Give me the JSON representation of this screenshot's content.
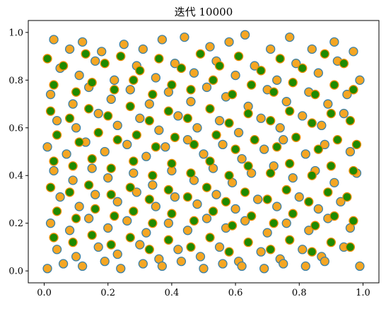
{
  "chart_data": {
    "type": "scatter",
    "title": "迭代 10000",
    "xlabel": "",
    "ylabel": "",
    "xlim": [
      -0.05,
      1.05
    ],
    "ylim": [
      -0.05,
      1.05
    ],
    "xticks": [
      0.0,
      0.2,
      0.4,
      0.6,
      0.8,
      1.0
    ],
    "xtick_labels": [
      "0.0",
      "0.2",
      "0.4",
      "0.6",
      "0.8",
      "1.0"
    ],
    "yticks": [
      0.0,
      0.2,
      0.4,
      0.6,
      0.8,
      1.0
    ],
    "ytick_labels": [
      "0.0",
      "0.2",
      "0.4",
      "0.6",
      "0.8",
      "1.0"
    ],
    "grid": false,
    "legend": "none",
    "series": [
      {
        "marker_fill": "#f5a623",
        "marker_edge": "#3a7fa5",
        "points": [
          [
            0.03,
            0.97
          ],
          [
            0.08,
            0.93
          ],
          [
            0.12,
            0.96
          ],
          [
            0.18,
            0.92
          ],
          [
            0.25,
            0.95
          ],
          [
            0.31,
            0.93
          ],
          [
            0.37,
            0.97
          ],
          [
            0.44,
            0.98
          ],
          [
            0.52,
            0.94
          ],
          [
            0.58,
            0.96
          ],
          [
            0.63,
            0.99
          ],
          [
            0.71,
            0.93
          ],
          [
            0.77,
            0.98
          ],
          [
            0.84,
            0.93
          ],
          [
            0.91,
            0.96
          ],
          [
            0.97,
            0.92
          ],
          [
            0.05,
            0.85
          ],
          [
            0.11,
            0.82
          ],
          [
            0.16,
            0.88
          ],
          [
            0.22,
            0.8
          ],
          [
            0.29,
            0.86
          ],
          [
            0.35,
            0.81
          ],
          [
            0.41,
            0.87
          ],
          [
            0.47,
            0.83
          ],
          [
            0.54,
            0.88
          ],
          [
            0.6,
            0.82
          ],
          [
            0.66,
            0.86
          ],
          [
            0.73,
            0.8
          ],
          [
            0.79,
            0.87
          ],
          [
            0.86,
            0.83
          ],
          [
            0.92,
            0.88
          ],
          [
            0.99,
            0.8
          ],
          [
            0.02,
            0.74
          ],
          [
            0.09,
            0.7
          ],
          [
            0.14,
            0.77
          ],
          [
            0.21,
            0.72
          ],
          [
            0.27,
            0.76
          ],
          [
            0.33,
            0.7
          ],
          [
            0.39,
            0.75
          ],
          [
            0.46,
            0.71
          ],
          [
            0.51,
            0.77
          ],
          [
            0.57,
            0.73
          ],
          [
            0.64,
            0.69
          ],
          [
            0.7,
            0.76
          ],
          [
            0.76,
            0.71
          ],
          [
            0.83,
            0.75
          ],
          [
            0.89,
            0.7
          ],
          [
            0.95,
            0.74
          ],
          [
            0.04,
            0.63
          ],
          [
            0.1,
            0.6
          ],
          [
            0.17,
            0.66
          ],
          [
            0.23,
            0.61
          ],
          [
            0.3,
            0.64
          ],
          [
            0.36,
            0.59
          ],
          [
            0.42,
            0.65
          ],
          [
            0.48,
            0.6
          ],
          [
            0.55,
            0.63
          ],
          [
            0.61,
            0.58
          ],
          [
            0.68,
            0.64
          ],
          [
            0.74,
            0.6
          ],
          [
            0.81,
            0.65
          ],
          [
            0.87,
            0.61
          ],
          [
            0.94,
            0.66
          ],
          [
            0.01,
            0.52
          ],
          [
            0.07,
            0.49
          ],
          [
            0.13,
            0.54
          ],
          [
            0.19,
            0.5
          ],
          [
            0.26,
            0.53
          ],
          [
            0.32,
            0.48
          ],
          [
            0.38,
            0.52
          ],
          [
            0.45,
            0.55
          ],
          [
            0.5,
            0.49
          ],
          [
            0.56,
            0.53
          ],
          [
            0.62,
            0.47
          ],
          [
            0.69,
            0.51
          ],
          [
            0.75,
            0.55
          ],
          [
            0.82,
            0.49
          ],
          [
            0.88,
            0.53
          ],
          [
            0.96,
            0.5
          ],
          [
            0.03,
            0.42
          ],
          [
            0.09,
            0.38
          ],
          [
            0.15,
            0.43
          ],
          [
            0.2,
            0.39
          ],
          [
            0.28,
            0.41
          ],
          [
            0.34,
            0.36
          ],
          [
            0.4,
            0.42
          ],
          [
            0.47,
            0.38
          ],
          [
            0.53,
            0.43
          ],
          [
            0.59,
            0.37
          ],
          [
            0.65,
            0.41
          ],
          [
            0.72,
            0.44
          ],
          [
            0.78,
            0.39
          ],
          [
            0.85,
            0.42
          ],
          [
            0.91,
            0.37
          ],
          [
            0.98,
            0.41
          ],
          [
            0.05,
            0.31
          ],
          [
            0.11,
            0.27
          ],
          [
            0.16,
            0.32
          ],
          [
            0.23,
            0.29
          ],
          [
            0.29,
            0.33
          ],
          [
            0.35,
            0.27
          ],
          [
            0.41,
            0.31
          ],
          [
            0.48,
            0.28
          ],
          [
            0.54,
            0.32
          ],
          [
            0.6,
            0.26
          ],
          [
            0.67,
            0.3
          ],
          [
            0.73,
            0.27
          ],
          [
            0.8,
            0.31
          ],
          [
            0.86,
            0.26
          ],
          [
            0.93,
            0.29
          ],
          [
            0.02,
            0.2
          ],
          [
            0.08,
            0.17
          ],
          [
            0.14,
            0.22
          ],
          [
            0.2,
            0.18
          ],
          [
            0.26,
            0.21
          ],
          [
            0.32,
            0.16
          ],
          [
            0.39,
            0.2
          ],
          [
            0.45,
            0.17
          ],
          [
            0.51,
            0.22
          ],
          [
            0.57,
            0.18
          ],
          [
            0.63,
            0.21
          ],
          [
            0.7,
            0.16
          ],
          [
            0.76,
            0.2
          ],
          [
            0.83,
            0.17
          ],
          [
            0.89,
            0.22
          ],
          [
            0.96,
            0.18
          ],
          [
            0.04,
            0.09
          ],
          [
            0.1,
            0.06
          ],
          [
            0.17,
            0.1
          ],
          [
            0.23,
            0.07
          ],
          [
            0.3,
            0.11
          ],
          [
            0.36,
            0.05
          ],
          [
            0.42,
            0.09
          ],
          [
            0.49,
            0.06
          ],
          [
            0.55,
            0.1
          ],
          [
            0.61,
            0.04
          ],
          [
            0.68,
            0.08
          ],
          [
            0.74,
            0.05
          ],
          [
            0.81,
            0.09
          ],
          [
            0.87,
            0.06
          ],
          [
            0.94,
            0.1
          ],
          [
            0.01,
            0.01
          ],
          [
            0.06,
            0.03
          ],
          [
            0.12,
            0.02
          ],
          [
            0.19,
            0.04
          ],
          [
            0.24,
            0.01
          ],
          [
            0.31,
            0.03
          ],
          [
            0.37,
            0.02
          ],
          [
            0.43,
            0.04
          ],
          [
            0.5,
            0.01
          ],
          [
            0.56,
            0.03
          ],
          [
            0.62,
            0.02
          ],
          [
            0.69,
            0.01
          ],
          [
            0.75,
            0.03
          ],
          [
            0.82,
            0.02
          ],
          [
            0.88,
            0.04
          ],
          [
            0.99,
            0.02
          ]
        ]
      },
      {
        "marker_fill": "#1f8a00",
        "marker_edge": "#f08c00",
        "points": [
          [
            0.01,
            0.89
          ],
          [
            0.06,
            0.86
          ],
          [
            0.13,
            0.91
          ],
          [
            0.19,
            0.87
          ],
          [
            0.24,
            0.9
          ],
          [
            0.3,
            0.84
          ],
          [
            0.36,
            0.89
          ],
          [
            0.43,
            0.85
          ],
          [
            0.49,
            0.91
          ],
          [
            0.55,
            0.86
          ],
          [
            0.61,
            0.9
          ],
          [
            0.68,
            0.84
          ],
          [
            0.74,
            0.89
          ],
          [
            0.81,
            0.85
          ],
          [
            0.88,
            0.91
          ],
          [
            0.94,
            0.87
          ],
          [
            0.03,
            0.78
          ],
          [
            0.1,
            0.75
          ],
          [
            0.15,
            0.79
          ],
          [
            0.22,
            0.76
          ],
          [
            0.28,
            0.8
          ],
          [
            0.34,
            0.74
          ],
          [
            0.4,
            0.78
          ],
          [
            0.46,
            0.76
          ],
          [
            0.53,
            0.8
          ],
          [
            0.59,
            0.74
          ],
          [
            0.65,
            0.78
          ],
          [
            0.72,
            0.75
          ],
          [
            0.78,
            0.79
          ],
          [
            0.85,
            0.74
          ],
          [
            0.91,
            0.78
          ],
          [
            0.97,
            0.76
          ],
          [
            0.02,
            0.67
          ],
          [
            0.08,
            0.64
          ],
          [
            0.14,
            0.68
          ],
          [
            0.2,
            0.65
          ],
          [
            0.27,
            0.69
          ],
          [
            0.33,
            0.63
          ],
          [
            0.39,
            0.67
          ],
          [
            0.45,
            0.64
          ],
          [
            0.52,
            0.68
          ],
          [
            0.58,
            0.62
          ],
          [
            0.64,
            0.66
          ],
          [
            0.71,
            0.63
          ],
          [
            0.77,
            0.67
          ],
          [
            0.84,
            0.62
          ],
          [
            0.9,
            0.66
          ],
          [
            0.96,
            0.63
          ],
          [
            0.04,
            0.57
          ],
          [
            0.11,
            0.54
          ],
          [
            0.17,
            0.58
          ],
          [
            0.23,
            0.55
          ],
          [
            0.29,
            0.57
          ],
          [
            0.35,
            0.52
          ],
          [
            0.41,
            0.56
          ],
          [
            0.47,
            0.53
          ],
          [
            0.54,
            0.57
          ],
          [
            0.6,
            0.51
          ],
          [
            0.66,
            0.55
          ],
          [
            0.73,
            0.52
          ],
          [
            0.79,
            0.56
          ],
          [
            0.86,
            0.51
          ],
          [
            0.92,
            0.55
          ],
          [
            0.98,
            0.53
          ],
          [
            0.03,
            0.46
          ],
          [
            0.09,
            0.44
          ],
          [
            0.15,
            0.47
          ],
          [
            0.21,
            0.43
          ],
          [
            0.28,
            0.46
          ],
          [
            0.34,
            0.4
          ],
          [
            0.4,
            0.45
          ],
          [
            0.46,
            0.41
          ],
          [
            0.52,
            0.46
          ],
          [
            0.58,
            0.4
          ],
          [
            0.64,
            0.44
          ],
          [
            0.71,
            0.41
          ],
          [
            0.77,
            0.45
          ],
          [
            0.84,
            0.4
          ],
          [
            0.9,
            0.44
          ],
          [
            0.97,
            0.42
          ],
          [
            0.02,
            0.35
          ],
          [
            0.08,
            0.33
          ],
          [
            0.14,
            0.36
          ],
          [
            0.21,
            0.32
          ],
          [
            0.27,
            0.35
          ],
          [
            0.33,
            0.3
          ],
          [
            0.39,
            0.34
          ],
          [
            0.45,
            0.31
          ],
          [
            0.51,
            0.35
          ],
          [
            0.57,
            0.29
          ],
          [
            0.63,
            0.33
          ],
          [
            0.7,
            0.3
          ],
          [
            0.76,
            0.34
          ],
          [
            0.83,
            0.29
          ],
          [
            0.89,
            0.33
          ],
          [
            0.95,
            0.31
          ],
          [
            0.04,
            0.25
          ],
          [
            0.1,
            0.22
          ],
          [
            0.16,
            0.26
          ],
          [
            0.22,
            0.23
          ],
          [
            0.28,
            0.25
          ],
          [
            0.34,
            0.2
          ],
          [
            0.4,
            0.24
          ],
          [
            0.47,
            0.21
          ],
          [
            0.53,
            0.25
          ],
          [
            0.59,
            0.19
          ],
          [
            0.65,
            0.23
          ],
          [
            0.72,
            0.2
          ],
          [
            0.78,
            0.24
          ],
          [
            0.85,
            0.19
          ],
          [
            0.91,
            0.23
          ],
          [
            0.97,
            0.21
          ],
          [
            0.03,
            0.14
          ],
          [
            0.09,
            0.12
          ],
          [
            0.15,
            0.15
          ],
          [
            0.21,
            0.11
          ],
          [
            0.27,
            0.14
          ],
          [
            0.33,
            0.09
          ],
          [
            0.39,
            0.13
          ],
          [
            0.46,
            0.1
          ],
          [
            0.52,
            0.14
          ],
          [
            0.58,
            0.08
          ],
          [
            0.64,
            0.12
          ],
          [
            0.71,
            0.09
          ],
          [
            0.77,
            0.13
          ],
          [
            0.84,
            0.08
          ],
          [
            0.9,
            0.12
          ],
          [
            0.96,
            0.1
          ]
        ]
      }
    ]
  }
}
